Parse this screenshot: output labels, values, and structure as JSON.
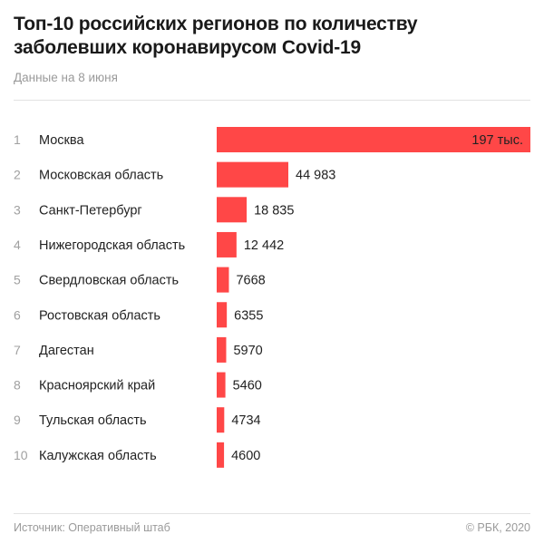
{
  "chart_data": {
    "type": "bar",
    "orientation": "horizontal",
    "title": "Топ-10 российских регионов по количеству заболевших коронавирусом Covid-19",
    "subtitle": "Данные на 8 июня",
    "ranks": [
      "1",
      "2",
      "3",
      "4",
      "5",
      "6",
      "7",
      "8",
      "9",
      "10"
    ],
    "categories": [
      "Москва",
      "Московская область",
      "Санкт-Петербург",
      "Нижегородская область",
      "Свердловская область",
      "Ростовская область",
      "Дагестан",
      "Красноярский край",
      "Тульская область",
      "Калужская область"
    ],
    "values": [
      197000,
      44983,
      18835,
      12442,
      7668,
      6355,
      5970,
      5460,
      4734,
      4600
    ],
    "value_labels": [
      "197 тыс.",
      "44 983",
      "18 835",
      "12 442",
      "7668",
      "6355",
      "5970",
      "5460",
      "4734",
      "4600"
    ],
    "xlim": [
      0,
      197000
    ],
    "grid": false,
    "bar_color": "#ff4747",
    "source": "Источник: Оперативный штаб",
    "copyright": "© РБК, 2020"
  }
}
